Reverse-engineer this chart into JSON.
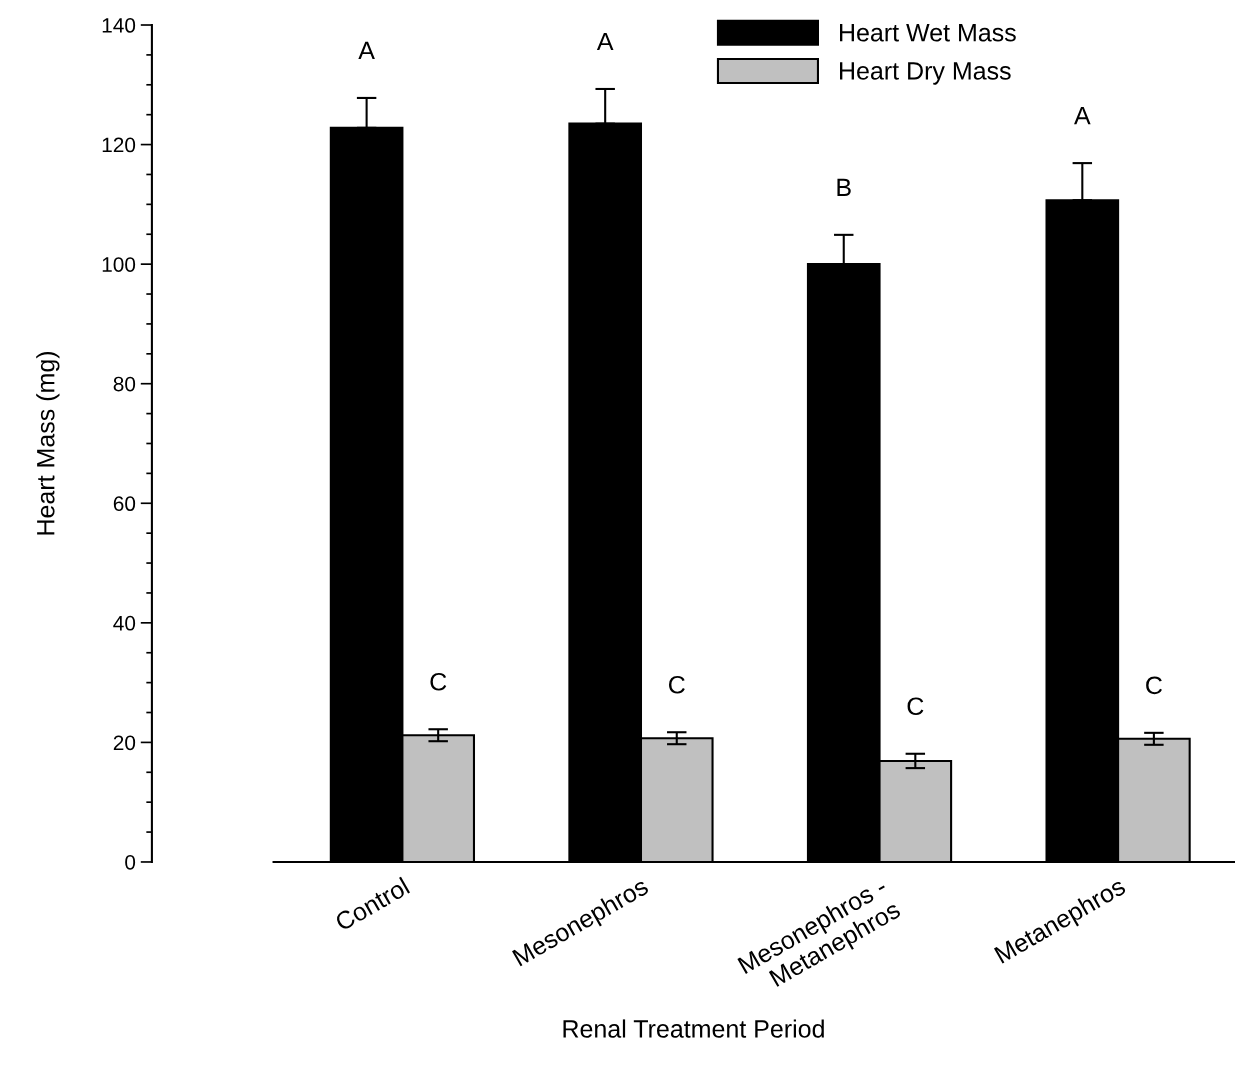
{
  "chart_data": {
    "type": "bar",
    "xlabel": "Renal Treatment Period",
    "ylabel": "Heart Mass (mg)",
    "categories": [
      "Control",
      "Mesonephros",
      "Mesonephros -\nMetanephros",
      "Metanephros"
    ],
    "series": [
      {
        "name": "Heart Wet Mass",
        "color": "#000000",
        "values": [
          122.8,
          123.5,
          100.0,
          110.7
        ],
        "errors": [
          [
            122.8,
            127.8
          ],
          [
            123.5,
            129.3
          ],
          [
            100.0,
            104.9
          ],
          [
            110.7,
            116.9
          ]
        ]
      },
      {
        "name": "Heart Dry Mass",
        "color": "#c0c0c0",
        "values": [
          21.2,
          20.7,
          16.9,
          20.6
        ],
        "errors": [
          1.0,
          1.0,
          1.2,
          1.0
        ]
      }
    ],
    "ylim": [
      0,
      140
    ],
    "yticks": [
      0,
      20,
      40,
      60,
      80,
      100,
      120,
      140
    ],
    "grid": false,
    "legend": "top right",
    "annotations": [
      "A",
      "C",
      "A",
      "C",
      "B",
      "C",
      "A",
      "C"
    ]
  }
}
